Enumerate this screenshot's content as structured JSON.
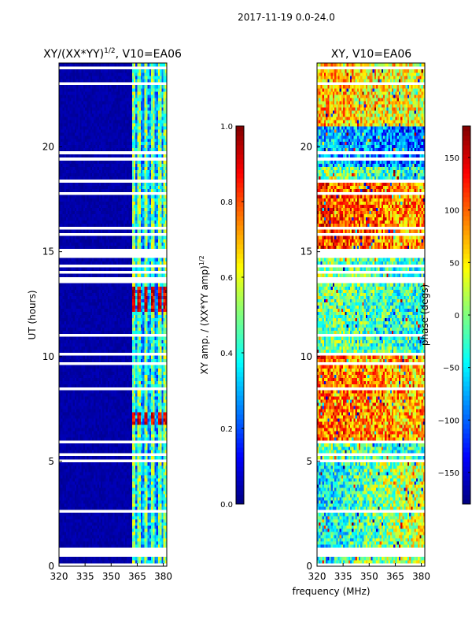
{
  "suptitle": "2017-11-19 0.0-24.0",
  "colormap": [
    "#00007f",
    "#0000ff",
    "#007fff",
    "#00ffff",
    "#7fff7f",
    "#ffff00",
    "#ff7f00",
    "#ff0000",
    "#7f0000"
  ],
  "chart_data": [
    {
      "type": "heatmap",
      "title_main": "XY/(XX*YY)",
      "title_sup": "1/2",
      "title_rest": ", V10=EA06",
      "xlabel": "",
      "ylabel": "UT (hours)",
      "xlim": [
        320,
        382
      ],
      "ylim": [
        0,
        24
      ],
      "xticks": [
        320,
        335,
        350,
        365,
        380
      ],
      "yticks": [
        0,
        5,
        10,
        15,
        20
      ],
      "quantity": "normalized XY amplitude",
      "colorbar": {
        "label_main": "XY amp. / (XX*YY amp)",
        "label_sup": "1/2",
        "range": [
          0.0,
          1.0
        ],
        "ticks": [
          "0.0",
          "0.2",
          "0.4",
          "0.6",
          "0.8",
          "1.0"
        ]
      },
      "bright_channels_MHz": [
        363,
        366,
        370,
        374,
        378,
        381
      ],
      "high_amp_hours": [
        [
          6.7,
          7.3
        ],
        [
          12.2,
          13.3
        ]
      ],
      "data_gaps_hours": [
        5.0,
        5.3,
        13.5,
        13.7,
        14.0,
        14.2,
        14.7,
        19.3,
        19.6
      ]
    },
    {
      "type": "heatmap",
      "title": "XY, V10=EA06",
      "xlabel": "frequency (MHz)",
      "ylabel": "",
      "xlim": [
        320,
        382
      ],
      "ylim": [
        0,
        24
      ],
      "xticks": [
        320,
        335,
        350,
        365,
        380
      ],
      "yticks": [
        0,
        5,
        10,
        15,
        20
      ],
      "quantity": "XY phase (deg)",
      "colorbar": {
        "label": "phase (degs)",
        "range": [
          -180,
          180
        ],
        "ticks": [
          "−150",
          "−100",
          "−50",
          "0",
          "50",
          "100",
          "150"
        ]
      }
    }
  ]
}
